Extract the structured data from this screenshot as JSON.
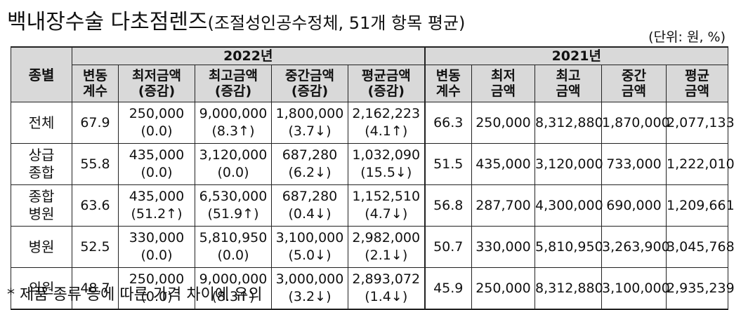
{
  "title": {
    "main": "백내장수술 다초점렌즈",
    "sub": "(조절성인공수정체, 51개 항목 평균)"
  },
  "unit": "(단위: 원, %)",
  "header": {
    "category": "종별",
    "year2022": "2022년",
    "year2021": "2021년",
    "cols2022": [
      [
        "변동",
        "계수"
      ],
      [
        "최저금액",
        "(증감)"
      ],
      [
        "최고금액",
        "(증감)"
      ],
      [
        "중간금액",
        "(증감)"
      ],
      [
        "평균금액",
        "(증감)"
      ]
    ],
    "cols2021": [
      [
        "변동",
        "계수"
      ],
      [
        "최저",
        "금액"
      ],
      [
        "최고",
        "금액"
      ],
      [
        "중간",
        "금액"
      ],
      [
        "평균",
        "금액"
      ]
    ]
  },
  "rows": [
    {
      "category": [
        "전체"
      ],
      "cv2022": "67.9",
      "v2022": [
        [
          "250,000",
          "(0.0)"
        ],
        [
          "9,000,000",
          "(8.3↑)"
        ],
        [
          "1,800,000",
          "(3.7↓)"
        ],
        [
          "2,162,223",
          "(4.1↑)"
        ]
      ],
      "cv2021": "66.3",
      "v2021": [
        "250,000",
        "8,312,880",
        "1,870,000",
        "2,077,133"
      ]
    },
    {
      "category": [
        "상급",
        "종합"
      ],
      "cv2022": "55.8",
      "v2022": [
        [
          "435,000",
          "(0.0)"
        ],
        [
          "3,120,000",
          "(0.0)"
        ],
        [
          "687,280",
          "(6.2↓)"
        ],
        [
          "1,032,090",
          "(15.5↓)"
        ]
      ],
      "cv2021": "51.5",
      "v2021": [
        "435,000",
        "3,120,000",
        "733,000",
        "1,222,010"
      ]
    },
    {
      "category": [
        "종합",
        "병원"
      ],
      "cv2022": "63.6",
      "v2022": [
        [
          "435,000",
          "(51.2↑)"
        ],
        [
          "6,530,000",
          "(51.9↑)"
        ],
        [
          "687,280",
          "(0.4↓)"
        ],
        [
          "1,152,510",
          "(4.7↓)"
        ]
      ],
      "cv2021": "56.8",
      "v2021": [
        "287,700",
        "4,300,000",
        "690,000",
        "1,209,661"
      ]
    },
    {
      "category": [
        "병원"
      ],
      "cv2022": "52.5",
      "v2022": [
        [
          "330,000",
          "(0.0)"
        ],
        [
          "5,810,950",
          "(0.0)"
        ],
        [
          "3,100,000",
          "(5.0↓)"
        ],
        [
          "2,982,000",
          "(2.1↓)"
        ]
      ],
      "cv2021": "50.7",
      "v2021": [
        "330,000",
        "5,810,950",
        "3,263,900",
        "3,045,768"
      ]
    },
    {
      "category": [
        "의원"
      ],
      "cv2022": "48.7",
      "v2022": [
        [
          "250,000",
          "(0.0)"
        ],
        [
          "9,000,000",
          "(8.3↑)"
        ],
        [
          "3,000,000",
          "(3.2↓)"
        ],
        [
          "2,893,072",
          "(1.4↓)"
        ]
      ],
      "cv2021": "45.9",
      "v2021": [
        "250,000",
        "8,312,880",
        "3,100,000",
        "2,935,239"
      ]
    }
  ],
  "note": "* 제품 종류 등에 따른 가격 차이에 유의"
}
